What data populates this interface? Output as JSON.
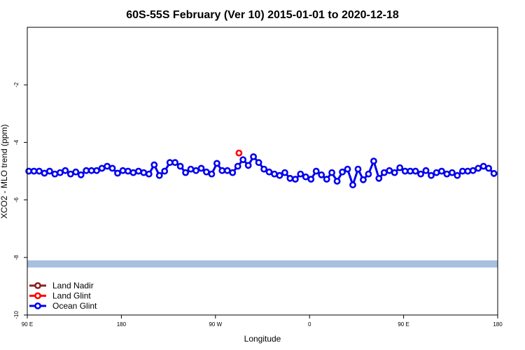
{
  "chart_data": {
    "type": "line",
    "title": "60S-55S February (Ver 10)   2015-01-01 to 2020-12-18",
    "xlabel": "Longitude",
    "ylabel": "XCO2 - MLO trend (ppm)",
    "xlim": [
      -90,
      270
    ],
    "ylim": [
      -10,
      0
    ],
    "xticks": [
      {
        "value": -90,
        "label": "90 E"
      },
      {
        "value": -18,
        "label": "180"
      },
      {
        "value": 54,
        "label": "90 W"
      },
      {
        "value": 126,
        "label": "0"
      },
      {
        "value": 198,
        "label": "90 E"
      },
      {
        "value": 270,
        "label": "180"
      }
    ],
    "yticks": [
      {
        "value": -2,
        "label": "-2"
      },
      {
        "value": -4,
        "label": "-4"
      },
      {
        "value": -6,
        "label": "-6"
      },
      {
        "value": -8,
        "label": "-8"
      },
      {
        "value": -10,
        "label": "-10"
      }
    ],
    "band": {
      "y_from": -8.35,
      "y_to": -8.1,
      "color": "#a8bfe0"
    },
    "legend_position": "bottom-left",
    "series": [
      {
        "name": "Land Nadir",
        "color": "#8b2323",
        "x": [],
        "y": []
      },
      {
        "name": "Land Glint",
        "color": "#ff0000",
        "x": [
          72
        ],
        "y": [
          -4.37
        ]
      },
      {
        "name": "Ocean Glint",
        "color": "#0000ee",
        "x": [
          -88.9,
          -84.9,
          -80.9,
          -76.9,
          -72.9,
          -68.9,
          -64.9,
          -60.9,
          -56.9,
          -52.9,
          -48.9,
          -44.9,
          -40.9,
          -36.9,
          -32.9,
          -28.9,
          -24.9,
          -20.9,
          -16.9,
          -12.9,
          -8.9,
          -4.9,
          -0.9,
          3.1,
          7.1,
          11.1,
          15.1,
          19.1,
          23.1,
          27.1,
          31.1,
          35.1,
          39.1,
          43.1,
          47.1,
          51.1,
          55.1,
          59.1,
          63.1,
          67.1,
          71.1,
          75.1,
          79.1,
          83.1,
          87.1,
          91.1,
          95.1,
          99.1,
          103.1,
          107.1,
          111.1,
          115.1,
          119.1,
          123.1,
          127.1,
          131.1,
          135.1,
          139.1,
          143.1,
          147.1,
          151.1,
          155.1,
          159.1,
          163.1,
          167.1,
          171.1,
          175.1,
          179.1,
          183.1,
          187.1,
          191.1,
          195.1,
          199.1,
          203.1,
          207.1,
          211.1,
          215.1,
          219.1,
          223.1,
          227.1,
          231.1,
          235.1,
          239.1,
          243.1,
          247.1,
          251.1,
          255.1,
          259.1,
          263.1,
          267.1
        ],
        "y": [
          -5.0,
          -5.0,
          -5.0,
          -5.07,
          -5.0,
          -5.1,
          -5.05,
          -4.98,
          -5.1,
          -5.03,
          -5.13,
          -4.98,
          -4.98,
          -4.98,
          -4.9,
          -4.83,
          -4.9,
          -5.07,
          -4.98,
          -5.0,
          -5.05,
          -5.0,
          -5.05,
          -5.1,
          -4.78,
          -5.15,
          -5.0,
          -4.7,
          -4.7,
          -4.83,
          -5.05,
          -4.93,
          -4.98,
          -4.9,
          -5.03,
          -5.1,
          -4.73,
          -4.98,
          -4.98,
          -5.05,
          -4.83,
          -4.6,
          -4.8,
          -4.5,
          -4.7,
          -4.93,
          -5.03,
          -5.1,
          -5.15,
          -5.05,
          -5.25,
          -5.28,
          -5.1,
          -5.2,
          -5.28,
          -5.0,
          -5.13,
          -5.28,
          -5.05,
          -5.35,
          -5.03,
          -4.93,
          -5.48,
          -4.93,
          -5.3,
          -5.1,
          -4.65,
          -5.25,
          -5.05,
          -4.98,
          -5.05,
          -4.88,
          -5.0,
          -5.0,
          -5.0,
          -5.1,
          -4.98,
          -5.15,
          -5.05,
          -5.0,
          -5.1,
          -5.05,
          -5.15,
          -5.0,
          -5.0,
          -4.98,
          -4.9,
          -4.83,
          -4.9,
          -5.08
        ]
      }
    ]
  }
}
